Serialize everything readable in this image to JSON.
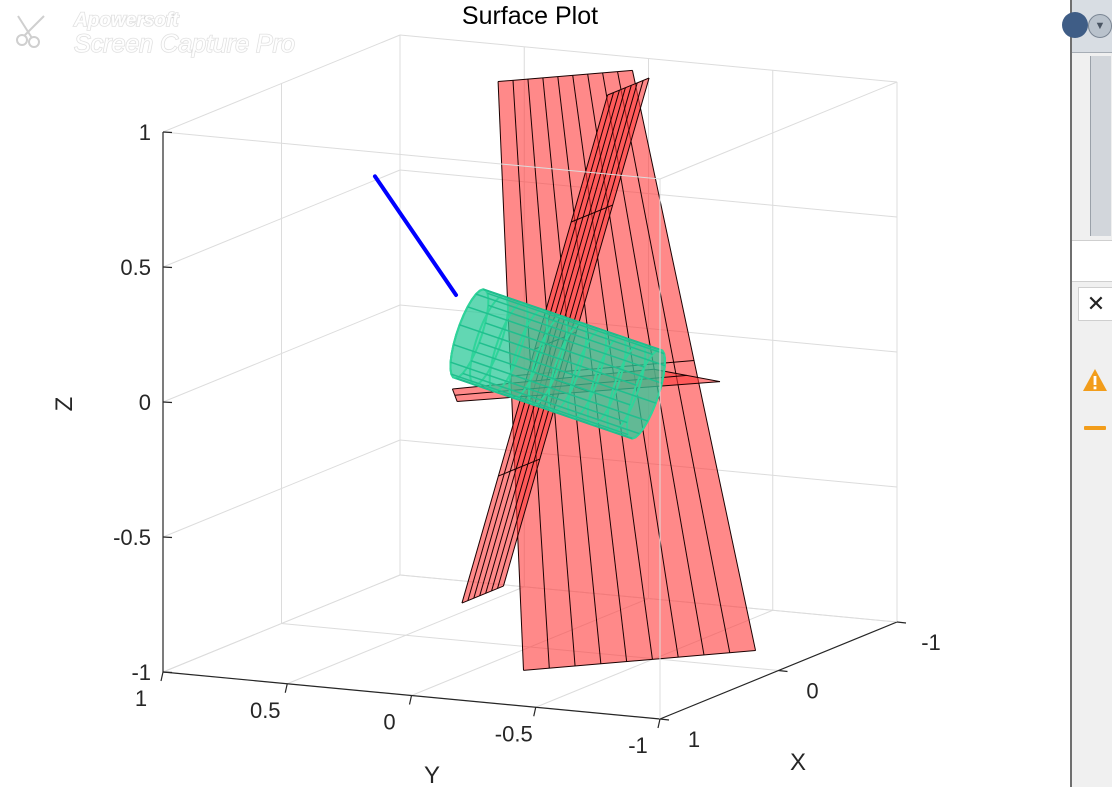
{
  "watermark": {
    "line1": "Apowersoft",
    "line2": "Screen Capture Pro"
  },
  "chart_data": {
    "type": "surface",
    "title": "Surface Plot",
    "xlabel": "X",
    "ylabel": "Y",
    "zlabel": "Z",
    "xlim": [
      -1,
      1
    ],
    "ylim": [
      -1,
      1
    ],
    "zlim": [
      -1,
      1
    ],
    "xticks": [
      "-1",
      "0",
      "1"
    ],
    "yticks": [
      "1",
      "0.5",
      "0",
      "-0.5",
      "-1"
    ],
    "zticks": [
      "1",
      "0.5",
      "0",
      "-0.5",
      "-1"
    ],
    "grid": true,
    "surfaces": [
      {
        "name": "",
        "kind": "plane",
        "color": "#ff3b3b",
        "opacity": 0.6
      },
      {
        "name": "",
        "kind": "plane",
        "color": "#ff3b3b",
        "opacity": 0.6
      },
      {
        "name": "",
        "kind": "plane",
        "color": "#ff3b3b",
        "opacity": 0.6
      },
      {
        "name": "",
        "kind": "cylinder-mesh",
        "color": "#2fd49a",
        "opacity": 1
      }
    ],
    "lines": [
      {
        "name": "",
        "color": "#0000ff",
        "from": [
          0.05,
          0.6,
          0.7
        ],
        "to": [
          0.1,
          0.25,
          0.3
        ]
      }
    ]
  },
  "side_panel": {
    "close_label": "✕"
  }
}
